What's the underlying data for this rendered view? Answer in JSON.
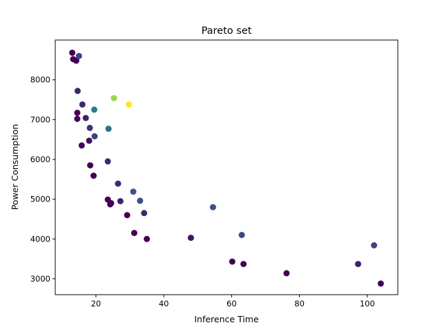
{
  "chart_data": {
    "type": "scatter",
    "title": "Pareto set",
    "xlabel": "Inference Time",
    "ylabel": "Power Consumption",
    "xlim": [
      8,
      109
    ],
    "ylim": [
      2600,
      9000
    ],
    "xticks": [
      20,
      40,
      60,
      80,
      100
    ],
    "yticks": [
      3000,
      4000,
      5000,
      6000,
      7000,
      8000
    ],
    "grid": false,
    "colormap": "viridis",
    "points": [
      {
        "x": 13.0,
        "y": 8680,
        "c": 0.0
      },
      {
        "x": 13.3,
        "y": 8520,
        "c": 0.0
      },
      {
        "x": 14.2,
        "y": 8480,
        "c": 0.0
      },
      {
        "x": 15.0,
        "y": 8600,
        "c": 0.22
      },
      {
        "x": 14.6,
        "y": 7720,
        "c": 0.12
      },
      {
        "x": 16.0,
        "y": 7380,
        "c": 0.12
      },
      {
        "x": 14.5,
        "y": 7170,
        "c": 0.0
      },
      {
        "x": 14.5,
        "y": 7020,
        "c": 0.0
      },
      {
        "x": 17.0,
        "y": 7040,
        "c": 0.1
      },
      {
        "x": 19.5,
        "y": 7250,
        "c": 0.42
      },
      {
        "x": 25.3,
        "y": 7540,
        "c": 0.85
      },
      {
        "x": 29.7,
        "y": 7380,
        "c": 1.0
      },
      {
        "x": 18.2,
        "y": 6790,
        "c": 0.15
      },
      {
        "x": 23.7,
        "y": 6770,
        "c": 0.36
      },
      {
        "x": 19.6,
        "y": 6580,
        "c": 0.2
      },
      {
        "x": 18.0,
        "y": 6470,
        "c": 0.05
      },
      {
        "x": 15.8,
        "y": 6350,
        "c": 0.0
      },
      {
        "x": 23.5,
        "y": 5950,
        "c": 0.12
      },
      {
        "x": 18.3,
        "y": 5850,
        "c": 0.0
      },
      {
        "x": 19.3,
        "y": 5590,
        "c": 0.0
      },
      {
        "x": 26.5,
        "y": 5390,
        "c": 0.12
      },
      {
        "x": 31.0,
        "y": 5190,
        "c": 0.25
      },
      {
        "x": 23.5,
        "y": 4990,
        "c": 0.0
      },
      {
        "x": 27.2,
        "y": 4950,
        "c": 0.1
      },
      {
        "x": 33.0,
        "y": 4960,
        "c": 0.25
      },
      {
        "x": 24.5,
        "y": 4900,
        "c": 0.05
      },
      {
        "x": 24.2,
        "y": 4870,
        "c": 0.0
      },
      {
        "x": 54.5,
        "y": 4800,
        "c": 0.25
      },
      {
        "x": 34.2,
        "y": 4650,
        "c": 0.12
      },
      {
        "x": 29.2,
        "y": 4600,
        "c": 0.0
      },
      {
        "x": 31.3,
        "y": 4150,
        "c": 0.0
      },
      {
        "x": 63.0,
        "y": 4100,
        "c": 0.22
      },
      {
        "x": 48.0,
        "y": 4030,
        "c": 0.05
      },
      {
        "x": 35.0,
        "y": 4000,
        "c": 0.0
      },
      {
        "x": 102.0,
        "y": 3840,
        "c": 0.2
      },
      {
        "x": 60.2,
        "y": 3430,
        "c": 0.0
      },
      {
        "x": 63.5,
        "y": 3370,
        "c": 0.0
      },
      {
        "x": 97.3,
        "y": 3370,
        "c": 0.1
      },
      {
        "x": 76.2,
        "y": 3140,
        "c": 0.0
      },
      {
        "x": 104.0,
        "y": 2880,
        "c": 0.0
      }
    ]
  }
}
